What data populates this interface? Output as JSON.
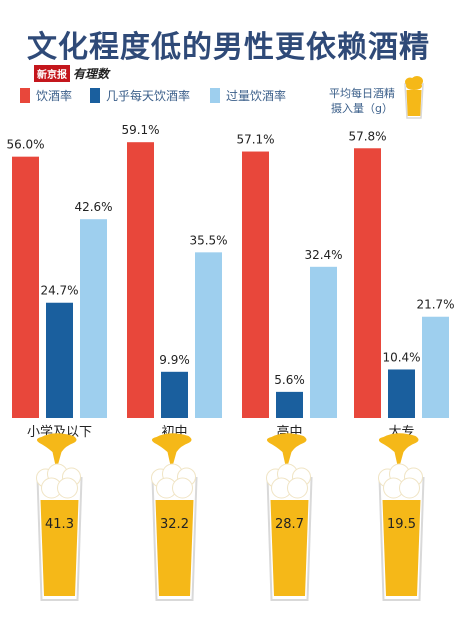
{
  "header": {
    "title": "文化程度低的男性更依赖酒精",
    "logo_red": "新京报",
    "logo_black": "有理数"
  },
  "legend": {
    "items": [
      {
        "label": "饮酒率",
        "color": "#e8473b"
      },
      {
        "label": "几乎每天饮酒率",
        "color": "#1a5f9e"
      },
      {
        "label": "过量饮酒率",
        "color": "#9ecfee"
      }
    ],
    "side_label_line1": "平均每日酒精",
    "side_label_line2": "摄入量（g）",
    "side_icon": "beer-glass-icon"
  },
  "chart_data": {
    "type": "bar",
    "categories": [
      "小学及以下",
      "初中",
      "高中",
      "大专"
    ],
    "series": [
      {
        "name": "饮酒率",
        "values": [
          56.0,
          59.1,
          57.1,
          57.8
        ],
        "color": "#e8473b"
      },
      {
        "name": "几乎每天饮酒率",
        "values": [
          24.7,
          9.9,
          5.6,
          10.4
        ],
        "color": "#1a5f9e"
      },
      {
        "name": "过量饮酒率",
        "values": [
          42.6,
          35.5,
          32.4,
          21.7
        ],
        "color": "#9ecfee"
      }
    ],
    "value_labels": [
      [
        "56.0%",
        "24.7%",
        "42.6%"
      ],
      [
        "59.1%",
        "9.9%",
        "35.5%"
      ],
      [
        "57.1%",
        "5.6%",
        "32.4%"
      ],
      [
        "57.8%",
        "10.4%",
        "21.7%"
      ]
    ],
    "alcohol_intake_g": [
      41.3,
      32.2,
      28.7,
      19.5
    ],
    "alcohol_intake_labels": [
      "41.3",
      "32.2",
      "28.7",
      "19.5"
    ],
    "ylim": [
      0,
      60
    ],
    "unit": "%",
    "grid": false
  }
}
